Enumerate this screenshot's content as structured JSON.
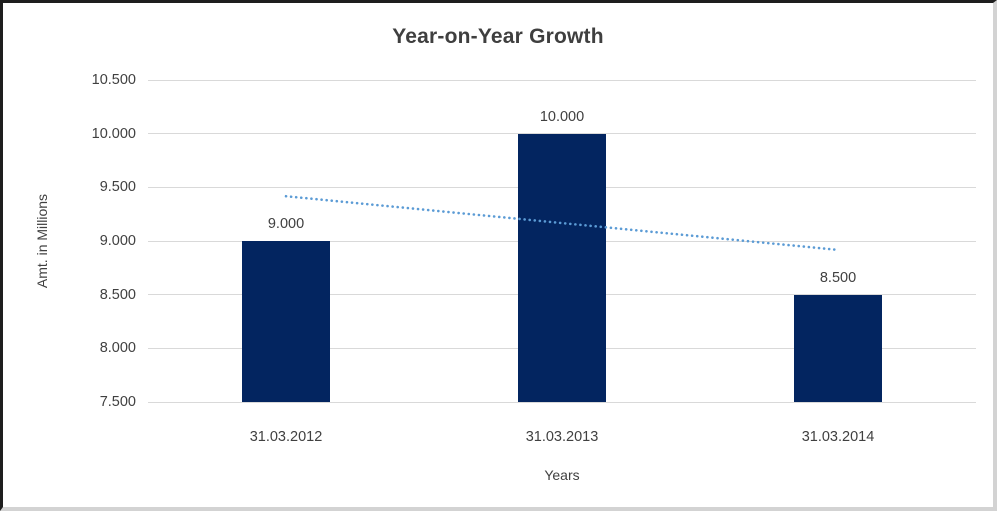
{
  "chart_data": {
    "type": "bar",
    "title": "Year-on-Year Growth",
    "xlabel": "Years",
    "ylabel": "Amt. in Millions",
    "categories": [
      "31.03.2012",
      "31.03.2013",
      "31.03.2014"
    ],
    "values": [
      9000,
      10000,
      8500
    ],
    "value_labels": [
      "9.000",
      "10.000",
      "8.500"
    ],
    "ylim": [
      7500,
      10500
    ],
    "ytick_step": 500,
    "ytick_labels": [
      "7.500",
      "8.000",
      "8.500",
      "9.000",
      "9.500",
      "10.000",
      "10.500"
    ],
    "grid": true,
    "legend": false,
    "bar_color": "#032560",
    "gridline_color": "#d9d9d9",
    "text_color": "#404040",
    "title_color": "#3f3f3f",
    "trendline": {
      "type": "linear",
      "style": "dotted",
      "color": "#5b9bd5",
      "start_value": 9417,
      "end_value": 8917
    }
  }
}
